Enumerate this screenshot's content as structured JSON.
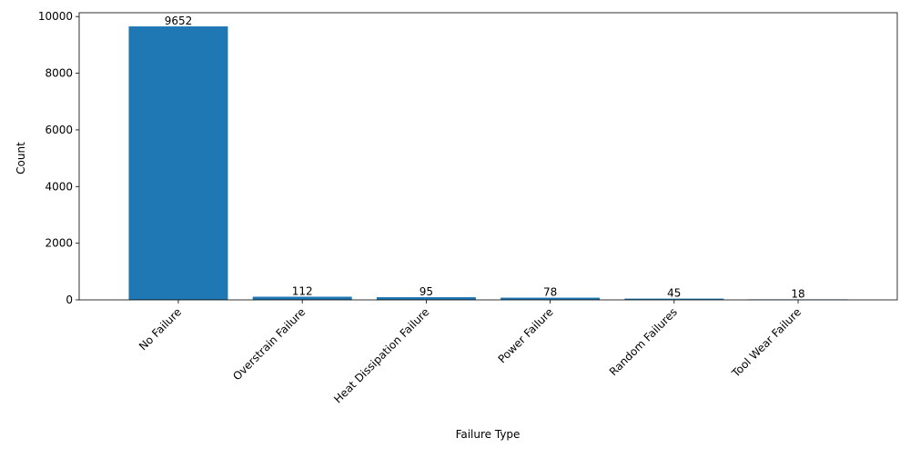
{
  "chart_data": {
    "type": "bar",
    "title": "",
    "xlabel": "Failure Type",
    "ylabel": "Count",
    "categories": [
      "No Failure",
      "Overstrain Failure",
      "Heat Dissipation Failure",
      "Power Failure",
      "Random Failures",
      "Tool Wear Failure"
    ],
    "values": [
      9652,
      112,
      95,
      78,
      45,
      18
    ],
    "data_labels": [
      "9652",
      "112",
      "95",
      "78",
      "45",
      "18"
    ],
    "ylim": [
      0,
      10135
    ],
    "yticks": [
      0,
      2000,
      4000,
      6000,
      8000,
      10000
    ],
    "ytick_labels": [
      "0",
      "2000",
      "4000",
      "6000",
      "8000",
      "10000"
    ],
    "bar_color": "#1f77b4",
    "grid": false,
    "legend": "none",
    "xtick_rotation_deg": 45
  }
}
